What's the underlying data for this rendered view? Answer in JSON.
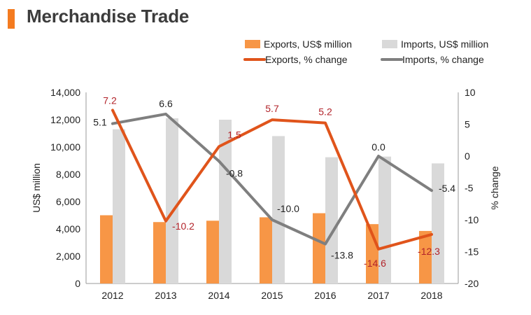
{
  "title": "Merchandise Trade",
  "colors": {
    "accent": "#f47b20",
    "exports_bar": "#f79646",
    "imports_bar": "#d9d9d9",
    "exports_line": "#e0541b",
    "imports_line": "#7f7f7f",
    "exports_label": "#b2232a",
    "imports_label": "#222222"
  },
  "chart_data": {
    "type": "bar+line",
    "categories": [
      "2012",
      "2013",
      "2014",
      "2015",
      "2016",
      "2017",
      "2018"
    ],
    "series": [
      {
        "name": "Exports, US$ million",
        "type": "bar",
        "axis": "left",
        "values": [
          5000,
          4500,
          4600,
          4850,
          5150,
          4350,
          3850
        ]
      },
      {
        "name": "Imports, US$ million",
        "type": "bar",
        "axis": "left",
        "values": [
          11300,
          12100,
          12000,
          10800,
          9250,
          9300,
          8800
        ]
      },
      {
        "name": "Exports, % change",
        "type": "line",
        "axis": "right",
        "values": [
          7.2,
          -10.2,
          1.5,
          5.7,
          5.2,
          -14.6,
          -12.3
        ],
        "labels": [
          "7.2",
          "-10.2",
          "1.5",
          "5.7",
          "5.2",
          "-14.6",
          "-12.3"
        ]
      },
      {
        "name": "Imports, % change",
        "type": "line",
        "axis": "right",
        "values": [
          5.1,
          6.6,
          -0.8,
          -10.0,
          -13.8,
          0.0,
          -5.4
        ],
        "labels": [
          "5.1",
          "6.6",
          "-0.8",
          "-10.0",
          "-13.8",
          "0.0",
          "-5.4"
        ]
      }
    ],
    "ylabel": "US$ million",
    "ylabel_right": "% change",
    "ylim": [
      0,
      14000
    ],
    "ylim_right": [
      -20,
      10
    ],
    "yticks": [
      "0",
      "2,000",
      "4,000",
      "6,000",
      "8,000",
      "10,000",
      "12,000",
      "14,000"
    ],
    "yticks_right": [
      "-20",
      "-15",
      "-10",
      "-5",
      "0",
      "5",
      "10"
    ],
    "grid": false,
    "legend": "top-right"
  }
}
